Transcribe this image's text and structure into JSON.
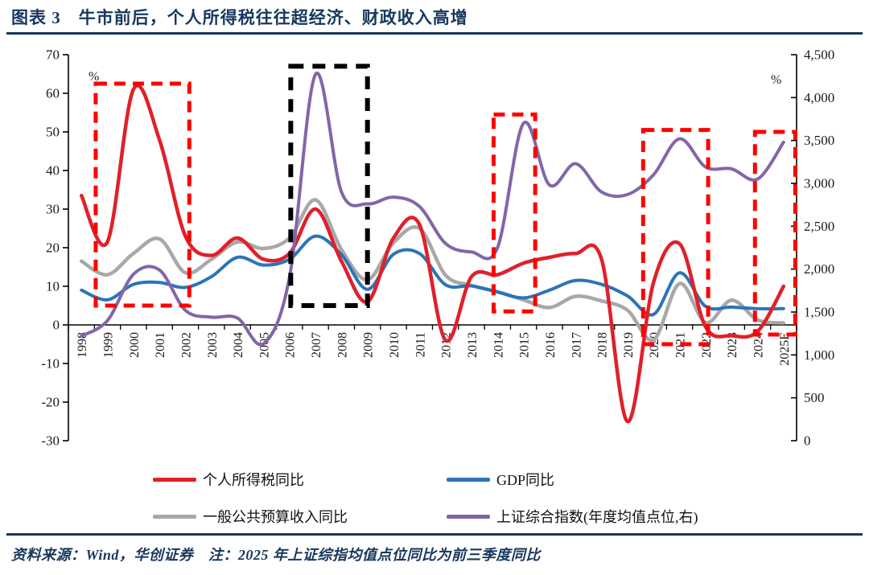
{
  "header": {
    "title": "图表 3　牛市前后，个人所得税往往超经济、财政收入高增"
  },
  "footer": {
    "text": "资料来源：Wind，华创证券　注：2025 年上证综指均值点位同比为前三季度同比"
  },
  "colors": {
    "accent_navy": "#17375E",
    "axis_line": "#000000",
    "tick_text": "#1a1a1a",
    "box_red": "#FF0000",
    "box_black": "#000000"
  },
  "chart_data": {
    "type": "line",
    "title": "牛市前后，个人所得税往往超经济、财政收入高增",
    "categories": [
      "1998",
      "1999",
      "2000",
      "2001",
      "2002",
      "2003",
      "2004",
      "2005",
      "2006",
      "2007",
      "2008",
      "2009",
      "2010",
      "2011",
      "2012",
      "2013",
      "2014",
      "2015",
      "2016",
      "2017",
      "2018",
      "2019",
      "2020",
      "2021",
      "2022",
      "2023",
      "2024",
      "2025E"
    ],
    "left_axis": {
      "unit": "%",
      "min": -30,
      "max": 70,
      "step": 10,
      "tick_labels": [
        "70",
        "60",
        "50",
        "40",
        "30",
        "20",
        "10",
        "0",
        "-10",
        "-20",
        "-30"
      ]
    },
    "right_axis": {
      "unit": "%",
      "min": 0,
      "max": 4500,
      "step": 500,
      "tick_labels": [
        "4,500",
        "4,000",
        "3,500",
        "3,000",
        "2,500",
        "2,000",
        "1,500",
        "1,000",
        "500",
        "0"
      ]
    },
    "grid": false,
    "legend_position": "bottom",
    "series": [
      {
        "name": "个人所得税同比",
        "color": "#E0202A",
        "axis": "left",
        "values": [
          33.5,
          21.5,
          61,
          48,
          23,
          18,
          22.5,
          17,
          18.5,
          30,
          16.5,
          6,
          22.5,
          26,
          -4,
          12.5,
          13,
          16,
          17.5,
          18.5,
          17,
          -25,
          11,
          21,
          -0.5,
          -2.8,
          -1.7,
          10
        ]
      },
      {
        "name": "GDP同比",
        "color": "#2B74B8",
        "axis": "left",
        "values": [
          9,
          6.5,
          10.5,
          11,
          9.7,
          12.5,
          17.5,
          15.5,
          17,
          23,
          18.2,
          9.2,
          18.3,
          18.5,
          10.4,
          10.1,
          8.5,
          7,
          9,
          11.5,
          10.5,
          7.5,
          2.7,
          13.5,
          4.8,
          4.6,
          4.2,
          4.2
        ]
      },
      {
        "name": "一般公共预算收入同比",
        "color": "#A8A8A8",
        "axis": "left",
        "values": [
          16.5,
          13,
          18.5,
          22.3,
          13.5,
          17,
          21.5,
          19.8,
          22.5,
          32.4,
          19.5,
          11.7,
          21.3,
          25,
          12.9,
          10.2,
          8.6,
          6.5,
          4.5,
          7.4,
          6.2,
          3.8,
          -3.9,
          10.7,
          0.6,
          6.4,
          1.3,
          0.5
        ]
      },
      {
        "name": "上证综合指数(年度均值点位,右)",
        "color": "#8365A9",
        "axis": "right",
        "values": [
          1220,
          1400,
          1940,
          1990,
          1520,
          1440,
          1430,
          1130,
          1900,
          4270,
          2900,
          2760,
          2840,
          2730,
          2300,
          2200,
          2250,
          3700,
          2980,
          3230,
          2900,
          2870,
          3100,
          3520,
          3190,
          3170,
          3050,
          3480
        ]
      }
    ],
    "highlight_boxes": [
      {
        "x1": 0.55,
        "x2": 4.15,
        "y1": 5,
        "y2": 62.5,
        "color": "#FF0000",
        "note": "1999-2002 bull period"
      },
      {
        "x1": 8.05,
        "x2": 11.0,
        "y1": 5,
        "y2": 67,
        "color": "#000000",
        "note": "2006-2009 period"
      },
      {
        "x1": 15.85,
        "x2": 17.45,
        "y1": 3.5,
        "y2": 54.5,
        "color": "#FF0000",
        "note": "2014-2015 bull period"
      },
      {
        "x1": 21.6,
        "x2": 24.1,
        "y1": -5,
        "y2": 50.5,
        "color": "#FF0000",
        "note": "2020-2022 period"
      },
      {
        "x1": 25.9,
        "x2": 27.45,
        "y1": -2.5,
        "y2": 50,
        "color": "#FF0000",
        "note": "2025E period"
      }
    ]
  }
}
